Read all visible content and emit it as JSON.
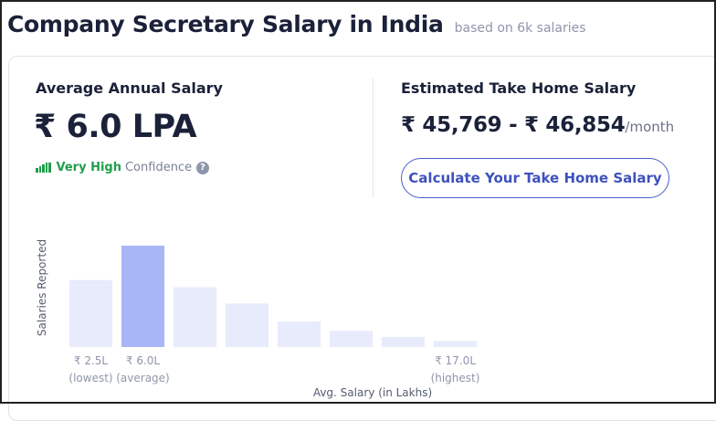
{
  "header": {
    "title": "Company Secretary Salary in India",
    "subtitle": "based on 6k salaries"
  },
  "average": {
    "label": "Average Annual Salary",
    "value": "₹ 6.0 LPA",
    "confidence_level": "Very High",
    "confidence_text": "Confidence",
    "help_icon": "?"
  },
  "take_home": {
    "label": "Estimated Take Home Salary",
    "value": "₹ 45,769 - ₹ 46,854",
    "unit": "/month",
    "button_label": "Calculate Your Take Home Salary"
  },
  "colors": {
    "bar": "#e8ebfb",
    "bar_highlight": "#a9b6f6",
    "confidence": "#1f9e4a",
    "accent": "#3e51bd"
  },
  "chart_data": {
    "type": "bar",
    "ylabel": "Salaries Reported",
    "xlabel": "Avg. Salary (in Lakhs)",
    "values": [
      66,
      100,
      59,
      43,
      25,
      16,
      10,
      6
    ],
    "highlight_index": 1,
    "ylim": [
      0,
      100
    ],
    "tick_labels": [
      {
        "index": 0,
        "value": "₹ 2.5L",
        "note": "(lowest)"
      },
      {
        "index": 1,
        "value": "₹ 6.0L",
        "note": "(average)"
      },
      {
        "index": 7,
        "value": "₹ 17.0L",
        "note": "(highest)"
      }
    ]
  }
}
